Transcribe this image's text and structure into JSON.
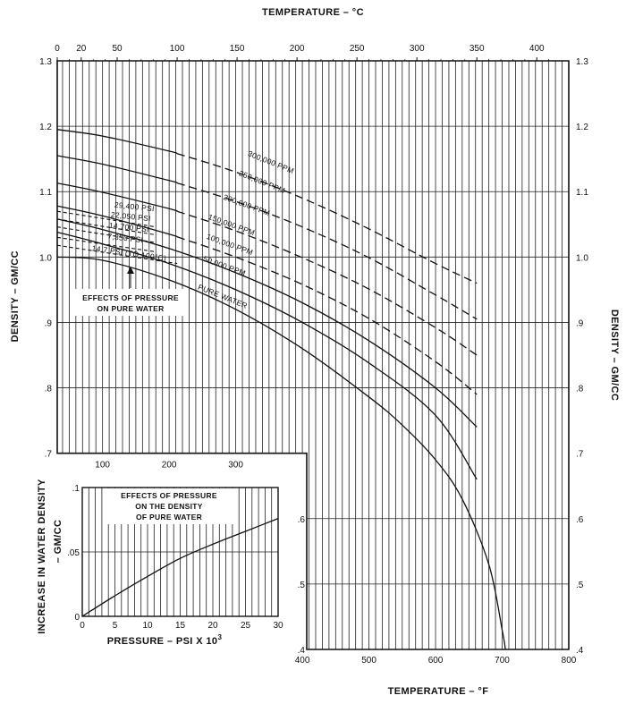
{
  "chart_data": [
    {
      "id": "main",
      "type": "line",
      "title": "",
      "xlabel_top": "TEMPERATURE – °C",
      "xlabel_bottom": "TEMPERATURE – °F",
      "ylabel_left": "DENSITY – GM/CC",
      "ylabel_right": "DENSITY – GM/CC",
      "x_unit": "°F",
      "xlim_F": [
        32,
        800
      ],
      "ylim": [
        0.4,
        1.3
      ],
      "top_ticks_C": [
        "0",
        "20",
        "50",
        "100",
        "150",
        "200",
        "250",
        "300",
        "350",
        "400"
      ],
      "lower_x_ticks_F": [
        "100",
        "200",
        "300"
      ],
      "bottom_x_ticks_F": [
        "400",
        "500",
        "600",
        "700",
        "800"
      ],
      "left_y_ticks": [
        "1.3",
        "1.2",
        "1.1",
        "1.0",
        ".9",
        ".8",
        ".7"
      ],
      "right_y_ticks": [
        ".4",
        ".5",
        ".6",
        ".7",
        ".8",
        ".9",
        "1.0",
        "1.1",
        "1.2",
        "1.3"
      ],
      "inner_y_ticks": [
        ".4",
        ".5",
        ".6"
      ],
      "grid": true,
      "series": [
        {
          "name": "300,000 PPM",
          "dashed_from_F": 212,
          "x": [
            32,
            100,
            200,
            300,
            400,
            500,
            600,
            662
          ],
          "y": [
            1.195,
            1.185,
            1.162,
            1.13,
            1.09,
            1.043,
            0.99,
            0.96
          ]
        },
        {
          "name": "250,000 PPM",
          "dashed_from_F": 212,
          "x": [
            32,
            100,
            200,
            300,
            400,
            500,
            600,
            662
          ],
          "y": [
            1.155,
            1.142,
            1.117,
            1.085,
            1.046,
            0.999,
            0.942,
            0.905
          ]
        },
        {
          "name": "200,000 PPM",
          "dashed_from_F": 212,
          "x": [
            32,
            100,
            200,
            300,
            400,
            500,
            600,
            662
          ],
          "y": [
            1.113,
            1.099,
            1.074,
            1.04,
            0.999,
            0.951,
            0.892,
            0.85
          ]
        },
        {
          "name": "150,000 PPM",
          "dashed_from_F": 212,
          "x": [
            32,
            100,
            200,
            300,
            400,
            500,
            600,
            662
          ],
          "y": [
            1.078,
            1.063,
            1.035,
            1.0,
            0.958,
            0.906,
            0.84,
            0.79
          ]
        },
        {
          "name": "100,000 PPM",
          "x": [
            32,
            100,
            200,
            300,
            400,
            500,
            600,
            662
          ],
          "y": [
            1.058,
            1.042,
            1.013,
            0.976,
            0.93,
            0.872,
            0.8,
            0.74
          ]
        },
        {
          "name": "50,000 PPM",
          "x": [
            32,
            100,
            200,
            300,
            400,
            500,
            600,
            662
          ],
          "y": [
            1.038,
            1.02,
            0.99,
            0.95,
            0.9,
            0.838,
            0.758,
            0.66
          ]
        },
        {
          "name": "PURE WATER",
          "x": [
            32,
            100,
            200,
            300,
            400,
            500,
            550,
            600,
            640,
            680,
            700,
            705
          ],
          "y": [
            1.0,
            0.995,
            0.965,
            0.92,
            0.86,
            0.786,
            0.743,
            0.69,
            0.63,
            0.53,
            0.43,
            0.4
          ]
        }
      ],
      "pressure_series": [
        {
          "name": "29,400 PSI",
          "x": [
            32,
            180
          ],
          "y": [
            1.07,
            1.046
          ]
        },
        {
          "name": "22,050 PSI",
          "x": [
            32,
            180
          ],
          "y": [
            1.058,
            1.034
          ]
        },
        {
          "name": "14,700 PSI",
          "x": [
            32,
            180
          ],
          "y": [
            1.046,
            1.022
          ]
        },
        {
          "name": "7,350 PSI",
          "x": [
            32,
            180
          ],
          "y": [
            1.03,
            1.008
          ]
        },
        {
          "name": "14.7 PSI (TO 100°C)",
          "x": [
            32,
            212
          ],
          "y": [
            1.018,
            0.99
          ]
        }
      ],
      "annotation": "EFFECTS OF PRESSURE ON PURE WATER",
      "annotation_lines": [
        "EFFECTS OF PRESSURE",
        "ON PURE WATER"
      ]
    },
    {
      "id": "inset",
      "type": "line",
      "title_lines": [
        "EFFECTS OF PRESSURE",
        "ON THE DENSITY",
        "OF PURE WATER"
      ],
      "xlabel": "PRESSURE – PSI X 10",
      "xlabel_sup": "3",
      "ylabel_lines": [
        "INCREASE IN WATER DENSITY",
        "– GM/CC"
      ],
      "xlim": [
        0,
        30
      ],
      "ylim": [
        0,
        0.1
      ],
      "x_ticks": [
        "0",
        "5",
        "10",
        "15",
        "20",
        "25",
        "30"
      ],
      "y_ticks": [
        ".1",
        ".05",
        "0"
      ],
      "grid": true,
      "series": [
        {
          "x": [
            0,
            5,
            10,
            15,
            20,
            25,
            30
          ],
          "y": [
            0.0,
            0.016,
            0.031,
            0.045,
            0.056,
            0.066,
            0.076
          ]
        }
      ]
    }
  ]
}
